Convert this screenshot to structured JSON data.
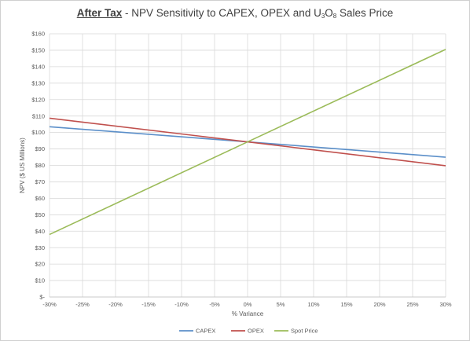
{
  "chart_data": {
    "type": "line",
    "title_emphasis": "After Tax",
    "title_rest": " - NPV Sensitivity to CAPEX, OPEX and U",
    "title_sub1": "3",
    "title_mid": "O",
    "title_sub2": "8",
    "title_end": " Sales Price",
    "xlabel": "% Variance",
    "ylabel": "NPV ($ US Millions)",
    "x": [
      -30,
      30
    ],
    "xticks": [
      -30,
      -25,
      -20,
      -15,
      -10,
      -5,
      0,
      5,
      10,
      15,
      20,
      25,
      30
    ],
    "xtick_labels": [
      "-30%",
      "-25%",
      "-20%",
      "-15%",
      "-10%",
      "-5%",
      "0%",
      "5%",
      "10%",
      "15%",
      "20%",
      "25%",
      "30%"
    ],
    "ylim": [
      0,
      160
    ],
    "yticks": [
      0,
      10,
      20,
      30,
      40,
      50,
      60,
      70,
      80,
      90,
      100,
      110,
      120,
      130,
      140,
      150,
      160
    ],
    "ytick_labels": [
      "$-",
      "$10",
      "$20",
      "$30",
      "$40",
      "$50",
      "$60",
      "$70",
      "$80",
      "$90",
      "$100",
      "$110",
      "$120",
      "$130",
      "$140",
      "$150",
      "$160"
    ],
    "grid": true,
    "legend_position": "bottom",
    "series": [
      {
        "name": "CAPEX",
        "color": "#5b8fc9",
        "x": [
          -30,
          0,
          30
        ],
        "values": [
          103.5,
          94.3,
          85
        ]
      },
      {
        "name": "OPEX",
        "color": "#c0504d",
        "x": [
          -30,
          0,
          30
        ],
        "values": [
          108.7,
          94.3,
          79.8
        ]
      },
      {
        "name": "Spot Price",
        "color": "#9bbb59",
        "x": [
          -30,
          0,
          30
        ],
        "values": [
          38,
          94.3,
          150.5
        ]
      }
    ]
  }
}
